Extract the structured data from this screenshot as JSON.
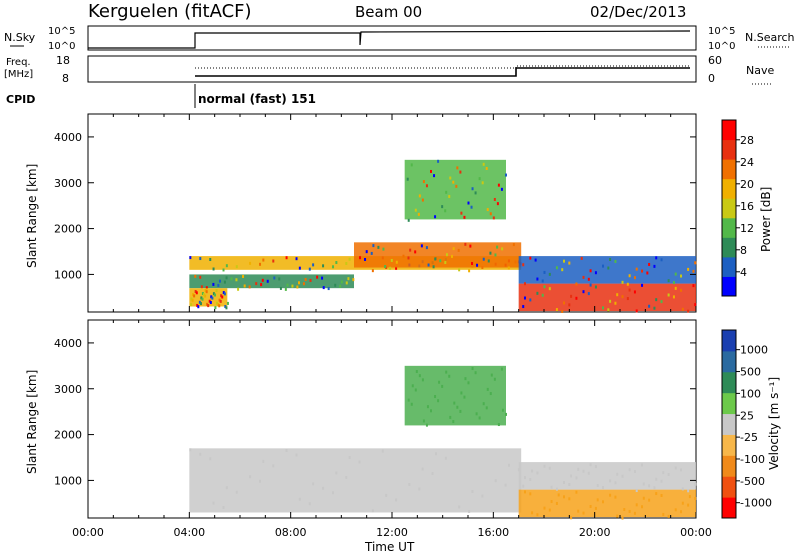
{
  "header": {
    "station": "Kerguelen (fitACF)",
    "beam": "Beam 00",
    "date": "02/Dec/2013"
  },
  "nsky_panel": {
    "left_label": "N.Sky",
    "right_label": "N.Search",
    "y_ticks": [
      "10^5",
      "10^0"
    ]
  },
  "freq_panel": {
    "left_label_1": "Freq.",
    "left_label_2": "[MHz]",
    "left_ticks": [
      "18",
      "8"
    ],
    "right_label": "Nave",
    "right_ticks": [
      "60",
      "0"
    ]
  },
  "cpid": {
    "label": "CPID",
    "value": "normal (fast) 151"
  },
  "chart_data": [
    {
      "type": "heatmap",
      "name": "power",
      "ylabel": "Slant Range [km]",
      "ylim": [
        180,
        4500
      ],
      "y_ticks": [
        "4000",
        "3000",
        "2000",
        "1000"
      ],
      "y_tick_values": [
        4000,
        3000,
        2000,
        1000
      ],
      "colorbar": {
        "label": "Power [dB]",
        "ticks": [
          "28",
          "24",
          "20",
          "16",
          "12",
          "8",
          "4"
        ],
        "tick_values": [
          28,
          24,
          20,
          16,
          12,
          8,
          4
        ],
        "range": [
          0,
          32
        ],
        "colors": [
          "#0000ff",
          "#1c5fc2",
          "#2e8b57",
          "#52b849",
          "#c9c914",
          "#f0b000",
          "#f07000",
          "#e83010",
          "#ff0000"
        ]
      },
      "echo_bands": [
        {
          "t_start": 4.0,
          "t_end": 17.1,
          "r_start": 1100,
          "r_end": 1400,
          "level": 18
        },
        {
          "t_start": 10.5,
          "t_end": 17.1,
          "r_start": 1150,
          "r_end": 1700,
          "level": 24
        },
        {
          "t_start": 4.0,
          "t_end": 10.5,
          "r_start": 700,
          "r_end": 1000,
          "level": 8
        },
        {
          "t_start": 4.0,
          "t_end": 5.5,
          "r_start": 300,
          "r_end": 700,
          "level": 20
        },
        {
          "t_start": 12.5,
          "t_end": 16.5,
          "r_start": 2200,
          "r_end": 3500,
          "level": 12
        },
        {
          "t_start": 17.0,
          "t_end": 24.0,
          "r_start": 200,
          "r_end": 800,
          "level": 26
        },
        {
          "t_start": 17.0,
          "t_end": 24.0,
          "r_start": 800,
          "r_end": 1400,
          "level": 6
        }
      ]
    },
    {
      "type": "heatmap",
      "name": "velocity",
      "ylabel": "Slant Range [km]",
      "xlabel": "Time UT",
      "ylim": [
        180,
        4500
      ],
      "xlim": [
        0,
        24
      ],
      "x_ticks": [
        "00:00",
        "04:00",
        "08:00",
        "12:00",
        "16:00",
        "20:00",
        "00:00"
      ],
      "x_tick_values": [
        0,
        4,
        8,
        12,
        16,
        20,
        24
      ],
      "y_ticks": [
        "4000",
        "3000",
        "2000",
        "1000"
      ],
      "y_tick_values": [
        4000,
        3000,
        2000,
        1000
      ],
      "colorbar": {
        "label": "Velocity [m s⁻¹]",
        "ticks": [
          "1000",
          "500",
          "100",
          "25",
          "-25",
          "-100",
          "-500",
          "-1000"
        ],
        "colors": [
          "#1a3fb0",
          "#2a6aa0",
          "#2e8b57",
          "#6cc94a",
          "#c8c8c8",
          "#f7b74a",
          "#f08a1a",
          "#f05010",
          "#ff0000"
        ]
      },
      "echo_bands": [
        {
          "t_start": 4.0,
          "t_end": 17.1,
          "r_start": 300,
          "r_end": 1700,
          "level": "grey"
        },
        {
          "t_start": 12.5,
          "t_end": 16.5,
          "r_start": 2200,
          "r_end": 3500,
          "level": "green"
        },
        {
          "t_start": 17.0,
          "t_end": 24.0,
          "r_start": 200,
          "r_end": 800,
          "level": "orange"
        },
        {
          "t_start": 17.0,
          "t_end": 24.0,
          "r_start": 800,
          "r_end": 1400,
          "level": "grey"
        }
      ]
    }
  ]
}
